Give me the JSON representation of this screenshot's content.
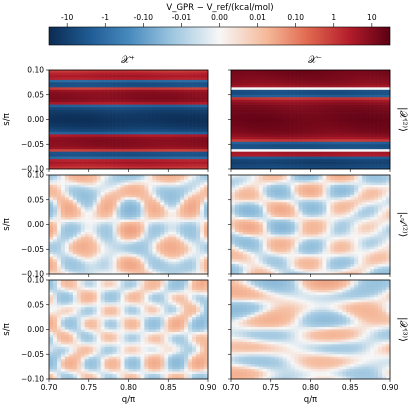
{
  "chart_data": {
    "type": "heatmap",
    "colorbar": {
      "label": "V_GPR − V_ref/(kcal/mol)",
      "tick_labels": [
        "-10",
        "-1",
        "-0.10",
        "-0.01",
        "0.00",
        "0.01",
        "0.10",
        "1",
        "10"
      ],
      "colormap": "RdBu_r (symmetric log)",
      "range": [
        -30,
        30
      ]
    },
    "columns": [
      "𝒳⁺",
      "𝒳⁻"
    ],
    "rows": [
      "|𝒳⁽²⁾⟩",
      "|𝒜⁽²⁾⟩",
      "|𝒳⁽³⁾⟩"
    ],
    "xlabel": "q/π",
    "ylabel": "s/π",
    "xlim": [
      0.7,
      0.9
    ],
    "ylim": [
      -0.1,
      0.1
    ],
    "x_tick_labels": [
      "0.70",
      "0.75",
      "0.80",
      "0.85",
      "0.90"
    ],
    "y_tick_labels": [
      "0.10",
      "0.05",
      "0.00",
      "−0.05",
      "−0.10"
    ],
    "panels": [
      {
        "row": 0,
        "col": 0,
        "pattern": "horizontal bands",
        "s_profile": [
          {
            "s": -0.1,
            "v": 0.6
          },
          {
            "s": -0.085,
            "v": 5
          },
          {
            "s": -0.07,
            "v": -8
          },
          {
            "s": -0.055,
            "v": 10
          },
          {
            "s": -0.04,
            "v": 12
          },
          {
            "s": -0.025,
            "v": -5
          },
          {
            "s": -0.01,
            "v": -20
          },
          {
            "s": 0.0,
            "v": -25
          },
          {
            "s": 0.01,
            "v": -20
          },
          {
            "s": 0.025,
            "v": -5
          },
          {
            "s": 0.04,
            "v": 12
          },
          {
            "s": 0.055,
            "v": 10
          },
          {
            "s": 0.07,
            "v": -8
          },
          {
            "s": 0.085,
            "v": 5
          },
          {
            "s": 0.1,
            "v": 0.6
          }
        ]
      },
      {
        "row": 0,
        "col": 1,
        "pattern": "horizontal bands",
        "s_profile": [
          {
            "s": -0.1,
            "v": -5
          },
          {
            "s": -0.085,
            "v": -15
          },
          {
            "s": -0.07,
            "v": 8
          },
          {
            "s": -0.055,
            "v": -8
          },
          {
            "s": -0.04,
            "v": 3
          },
          {
            "s": -0.025,
            "v": 15
          },
          {
            "s": -0.01,
            "v": 20
          },
          {
            "s": 0.0,
            "v": 22
          },
          {
            "s": 0.01,
            "v": 20
          },
          {
            "s": 0.025,
            "v": 15
          },
          {
            "s": 0.04,
            "v": 3
          },
          {
            "s": 0.055,
            "v": -8
          },
          {
            "s": 0.07,
            "v": 8
          },
          {
            "s": 0.085,
            "v": 15
          },
          {
            "s": 0.1,
            "v": 20
          }
        ]
      },
      {
        "row": 1,
        "col": 0,
        "pattern": "small residual",
        "range": [
          -0.05,
          0.06
        ]
      },
      {
        "row": 1,
        "col": 1,
        "pattern": "small residual",
        "range": [
          -0.06,
          0.05
        ]
      },
      {
        "row": 2,
        "col": 0,
        "pattern": "small residual",
        "range": [
          -0.03,
          0.03
        ]
      },
      {
        "row": 2,
        "col": 1,
        "pattern": "small residual",
        "range": [
          -0.03,
          0.03
        ]
      }
    ]
  }
}
